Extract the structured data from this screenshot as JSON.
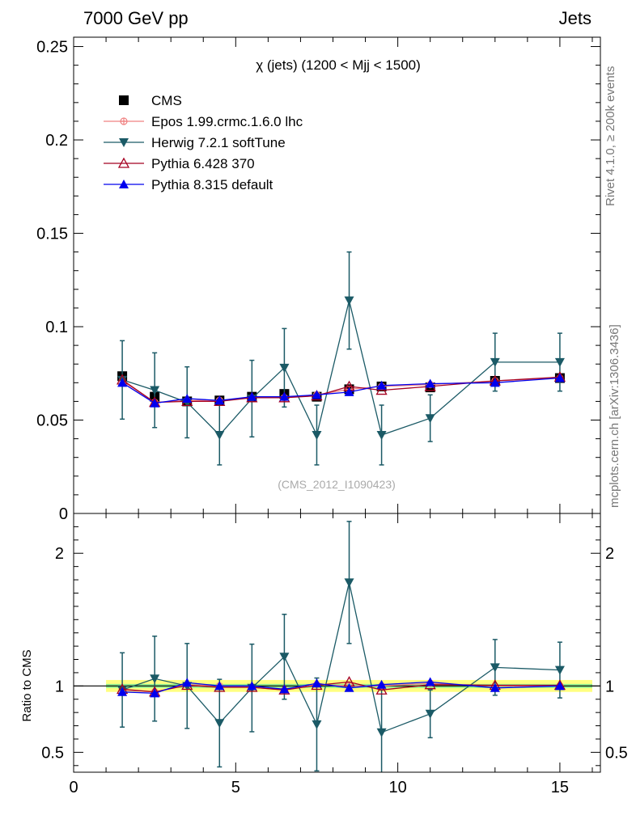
{
  "header": {
    "left": "7000 GeV pp",
    "right": "Jets"
  },
  "side_labels": {
    "rivet": "Rivet 4.1.0, ≥ 200k events",
    "mcplots": "mcplots.cern.ch [arXiv:1306.3436]"
  },
  "watermark": "(CMS_2012_I1090423)",
  "colors": {
    "cms": "#000000",
    "epos": "#f08080",
    "herwig": "#1b5a66",
    "pythia6": "#a50021",
    "pythia8": "#0000ee",
    "band_inner": "#90ee90",
    "band_outer": "#ffff80"
  },
  "chart_data": [
    {
      "id": "main",
      "type": "line",
      "title": "χ (jets) (1200 < Mjj < 1500)",
      "xlabel": "",
      "ylabel": "",
      "xlim": [
        0,
        16.25
      ],
      "ylim": [
        0,
        0.255
      ],
      "yticks": [
        0,
        0.05,
        0.1,
        0.15,
        0.2,
        0.25
      ],
      "ytick_labels": [
        "0",
        "0.05",
        "0.1",
        "0.15",
        "0.2",
        "0.25"
      ],
      "x": [
        1.5,
        2.5,
        3.5,
        4.5,
        5.5,
        6.5,
        7.5,
        8.5,
        9.5,
        11,
        13,
        15
      ],
      "series": [
        {
          "name": "CMS",
          "key": "cms",
          "marker": "square",
          "values": [
            0.0735,
            0.0625,
            0.06,
            0.0605,
            0.0625,
            0.064,
            0.0625,
            0.0665,
            0.068,
            0.0675,
            0.071,
            0.0725
          ]
        },
        {
          "name": "Epos 1.99.crmc.1.6.0 lhc",
          "key": "epos",
          "marker": "circle-plus",
          "values": [
            0.071,
            0.0595,
            0.0605,
            0.0605,
            0.062,
            0.062,
            0.0635,
            0.0665,
            0.068,
            0.069,
            0.071,
            0.0725
          ]
        },
        {
          "name": "Herwig 7.2.1 softTune",
          "key": "herwig",
          "marker": "triangle-down",
          "values": [
            0.0715,
            0.066,
            0.0595,
            0.042,
            0.0615,
            0.078,
            0.042,
            0.114,
            0.042,
            0.051,
            0.081,
            0.081
          ],
          "err": [
            0.021,
            0.02,
            0.019,
            0.016,
            0.0205,
            0.021,
            0.016,
            0.026,
            0.016,
            0.0125,
            0.0155,
            0.0155
          ]
        },
        {
          "name": "Pythia 6.428 370",
          "key": "pythia6",
          "marker": "triangle-up-open",
          "values": [
            0.0715,
            0.0595,
            0.06,
            0.06,
            0.062,
            0.062,
            0.063,
            0.068,
            0.066,
            0.068,
            0.071,
            0.073
          ]
        },
        {
          "name": "Pythia 8.315 default",
          "key": "pythia8",
          "marker": "triangle-up",
          "values": [
            0.07,
            0.059,
            0.0615,
            0.0605,
            0.0625,
            0.0625,
            0.0635,
            0.065,
            0.0685,
            0.0695,
            0.07,
            0.0725
          ]
        }
      ],
      "legend_position": "top-left"
    },
    {
      "id": "ratio",
      "type": "line",
      "ylabel": "Ratio to CMS",
      "xlim": [
        0,
        16.25
      ],
      "ylim": [
        0.35,
        2.3
      ],
      "yticks": [
        0.5,
        1,
        2
      ],
      "ytick_labels": [
        "0.5",
        "1",
        "2"
      ],
      "xticks": [
        0,
        5,
        10,
        15
      ],
      "xtick_labels": [
        "0",
        "5",
        "10",
        "15"
      ],
      "band": {
        "x": [
          1,
          16
        ],
        "inner": [
          0.985,
          1.015
        ],
        "outer": [
          0.955,
          1.045
        ]
      },
      "x": [
        1.5,
        2.5,
        3.5,
        4.5,
        5.5,
        6.5,
        7.5,
        8.5,
        9.5,
        11,
        13,
        15
      ],
      "series": [
        {
          "name": "Epos 1.99.crmc.1.6.0 lhc",
          "key": "epos",
          "marker": "circle-plus",
          "values": [
            0.97,
            0.955,
            1.01,
            1.0,
            0.99,
            0.97,
            1.01,
            1.0,
            1.0,
            1.02,
            1.0,
            1.0
          ]
        },
        {
          "name": "Herwig 7.2.1 softTune",
          "key": "herwig",
          "marker": "triangle-down",
          "values": [
            0.97,
            1.055,
            1.0,
            0.72,
            0.985,
            1.22,
            0.71,
            1.78,
            0.65,
            0.79,
            1.14,
            1.12
          ],
          "err": [
            0.28,
            0.32,
            0.32,
            0.33,
            0.33,
            0.32,
            0.35,
            0.46,
            0.32,
            0.18,
            0.21,
            0.21
          ]
        },
        {
          "name": "Pythia 6.428 370",
          "key": "pythia6",
          "marker": "triangle-up-open",
          "values": [
            0.975,
            0.955,
            1.005,
            0.99,
            0.99,
            0.97,
            1.005,
            1.03,
            0.97,
            1.01,
            1.005,
            1.005
          ]
        },
        {
          "name": "Pythia 8.315 default",
          "key": "pythia8",
          "marker": "triangle-up",
          "values": [
            0.955,
            0.945,
            1.025,
            1.0,
            1.0,
            0.975,
            1.02,
            0.985,
            1.01,
            1.03,
            0.985,
            1.0
          ]
        }
      ]
    }
  ]
}
